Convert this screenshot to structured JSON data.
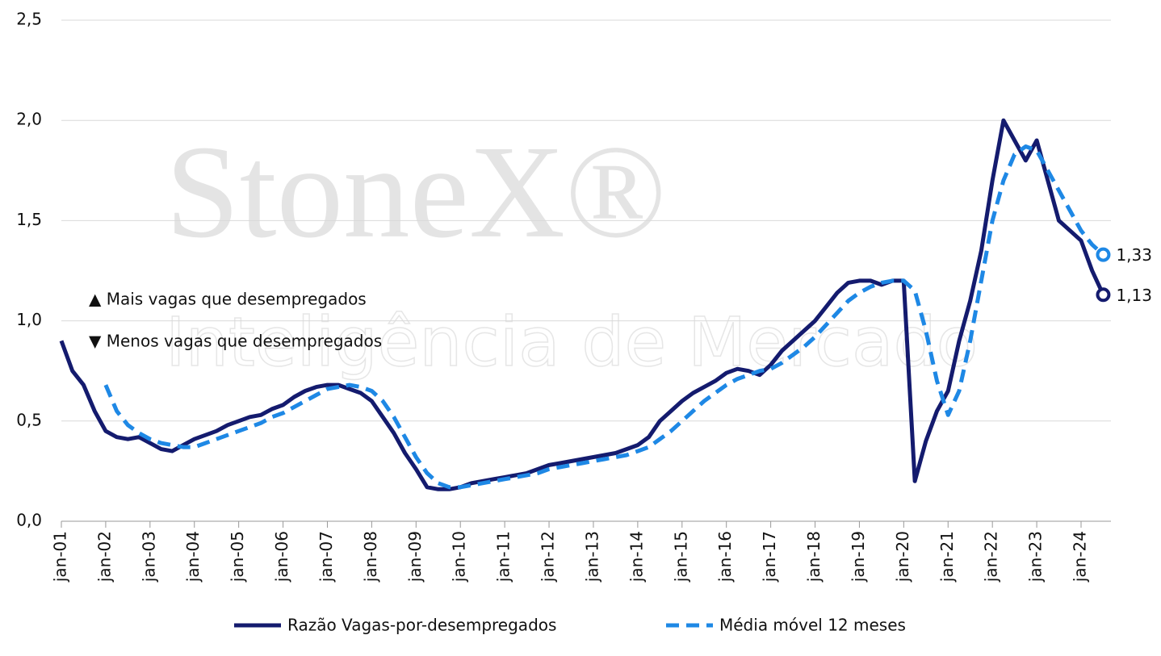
{
  "chart_data": {
    "type": "line",
    "watermark": [
      "StoneX®",
      "Inteligência de Mercado"
    ],
    "annotations": [
      "▲ Mais vagas que desempregados",
      "▼ Menos vagas que desempregados"
    ],
    "categories": [
      "jan-01",
      null,
      null,
      null,
      "jan-02",
      null,
      null,
      null,
      "jan-03",
      null,
      null,
      null,
      "jan-04",
      null,
      null,
      null,
      "jan-05",
      null,
      null,
      null,
      "jan-06",
      null,
      null,
      null,
      "jan-07",
      null,
      null,
      null,
      "jan-08",
      null,
      null,
      null,
      "jan-09",
      null,
      null,
      null,
      "jan-10",
      null,
      null,
      null,
      "jan-11",
      null,
      null,
      null,
      "jan-12",
      null,
      null,
      null,
      "jan-13",
      null,
      null,
      null,
      "jan-14",
      null,
      null,
      null,
      "jan-15",
      null,
      null,
      null,
      "jan-16",
      null,
      null,
      null,
      "jan-17",
      null,
      null,
      null,
      "jan-18",
      null,
      null,
      null,
      "jan-19",
      null,
      null,
      null,
      "jan-20",
      null,
      null,
      null,
      "jan-21",
      null,
      null,
      null,
      "jan-22",
      null,
      null,
      null,
      "jan-23",
      null,
      null,
      null,
      "jan-24",
      null,
      null
    ],
    "series": [
      {
        "name": "Razão Vagas-por-desempregados",
        "color": "#141b6e",
        "dash": false,
        "values": [
          0.9,
          0.75,
          0.68,
          0.55,
          0.45,
          0.42,
          0.41,
          0.42,
          0.39,
          0.36,
          0.35,
          0.38,
          0.41,
          0.43,
          0.45,
          0.48,
          0.5,
          0.52,
          0.53,
          0.56,
          0.58,
          0.62,
          0.65,
          0.67,
          0.68,
          0.68,
          0.66,
          0.64,
          0.6,
          0.52,
          0.44,
          0.34,
          0.26,
          0.17,
          0.16,
          0.16,
          0.17,
          0.19,
          0.2,
          0.21,
          0.22,
          0.23,
          0.24,
          0.26,
          0.28,
          0.29,
          0.3,
          0.31,
          0.32,
          0.33,
          0.34,
          0.36,
          0.38,
          0.42,
          0.5,
          0.55,
          0.6,
          0.64,
          0.67,
          0.7,
          0.74,
          0.76,
          0.75,
          0.73,
          0.78,
          0.85,
          0.9,
          0.95,
          1.0,
          1.07,
          1.14,
          1.19,
          1.2,
          1.2,
          1.18,
          1.2,
          1.2,
          0.2,
          0.4,
          0.55,
          0.65,
          0.9,
          1.1,
          1.35,
          1.7,
          2.0,
          1.9,
          1.8,
          1.9,
          1.7,
          1.5,
          1.45,
          1.4,
          1.25,
          1.13
        ],
        "value_labels": {
          "94": "1,13"
        }
      },
      {
        "name": "Média móvel 12 meses",
        "color": "#1e88e5",
        "dash": true,
        "values": [
          null,
          null,
          null,
          null,
          0.68,
          0.55,
          0.48,
          0.44,
          0.41,
          0.39,
          0.38,
          0.37,
          0.37,
          0.39,
          0.41,
          0.43,
          0.45,
          0.47,
          0.49,
          0.52,
          0.54,
          0.57,
          0.6,
          0.63,
          0.66,
          0.67,
          0.68,
          0.67,
          0.65,
          0.6,
          0.52,
          0.42,
          0.32,
          0.24,
          0.19,
          0.17,
          0.17,
          0.18,
          0.19,
          0.2,
          0.21,
          0.22,
          0.23,
          0.24,
          0.26,
          0.27,
          0.28,
          0.29,
          0.3,
          0.31,
          0.32,
          0.33,
          0.35,
          0.37,
          0.41,
          0.45,
          0.5,
          0.55,
          0.6,
          0.64,
          0.68,
          0.71,
          0.73,
          0.75,
          0.76,
          0.79,
          0.83,
          0.87,
          0.92,
          0.98,
          1.04,
          1.1,
          1.14,
          1.17,
          1.19,
          1.2,
          1.2,
          1.15,
          0.95,
          0.7,
          0.53,
          0.65,
          0.9,
          1.2,
          1.5,
          1.7,
          1.83,
          1.87,
          1.85,
          1.75,
          1.65,
          1.55,
          1.45,
          1.38,
          1.33
        ],
        "value_labels": {
          "94": "1,33"
        }
      }
    ],
    "ylim": [
      0,
      2.5
    ],
    "yticks": [
      {
        "value": 0,
        "label": "0,0"
      },
      {
        "value": 0.5,
        "label": "0,5"
      },
      {
        "value": 1,
        "label": "1,0"
      },
      {
        "value": 1.5,
        "label": "1,5"
      },
      {
        "value": 2,
        "label": "2,0"
      },
      {
        "value": 2.5,
        "label": "2,5"
      }
    ],
    "grid": true
  }
}
